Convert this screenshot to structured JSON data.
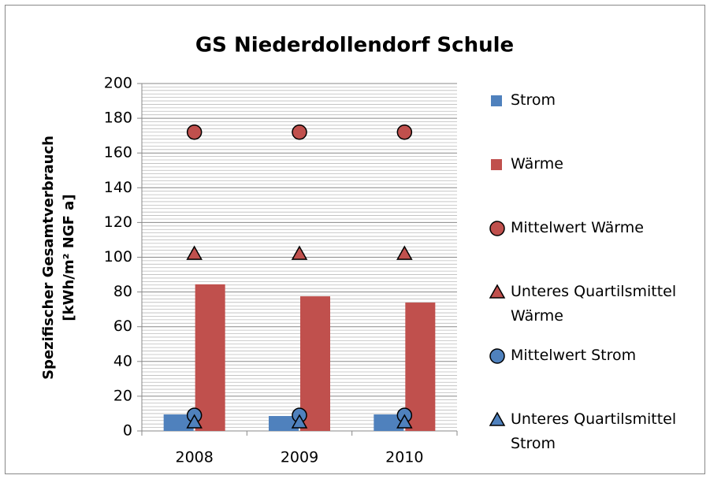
{
  "chart_data": {
    "type": "bar",
    "title": "GS Niederdollendorf Schule",
    "ylabel": [
      "Spezifischer Gesamtverbrauch",
      "[kWh/m² NGF a]"
    ],
    "categories": [
      "2008",
      "2009",
      "2010"
    ],
    "series": [
      {
        "name": "Strom",
        "color": "#4f81bd",
        "marker": "bar",
        "values": [
          9.5,
          8.6,
          9.5
        ]
      },
      {
        "name": "Wärme",
        "color": "#c0504d",
        "marker": "bar",
        "values": [
          84.4,
          77.5,
          73.9
        ]
      },
      {
        "name": "Mittelwert Wärme",
        "color": "#c0504d",
        "marker": "circle",
        "values": [
          172,
          172,
          172
        ]
      },
      {
        "name": "Unteres Quartilsmittel Wärme",
        "color": "#c0504d",
        "marker": "triangle",
        "values": [
          102,
          102,
          102
        ]
      },
      {
        "name": "Mittelwert Strom",
        "color": "#4f81bd",
        "marker": "circle",
        "values": [
          9,
          9,
          9
        ]
      },
      {
        "name": "Unteres Quartilsmittel Strom",
        "color": "#4f81bd",
        "marker": "triangle",
        "values": [
          5,
          5,
          5
        ]
      }
    ],
    "ylim": [
      0,
      200
    ],
    "yticks": [
      0,
      20,
      40,
      60,
      80,
      100,
      120,
      140,
      160,
      180,
      200
    ],
    "grid": true,
    "legend": "right"
  }
}
